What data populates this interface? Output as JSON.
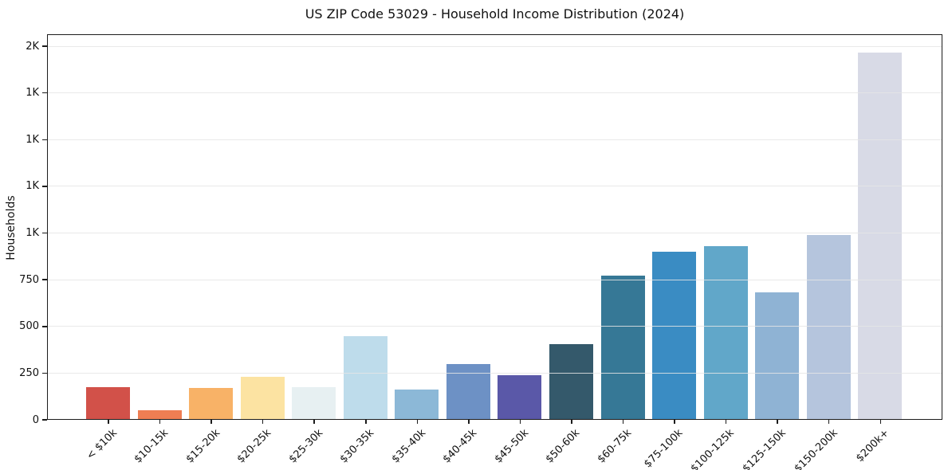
{
  "chart_data": {
    "type": "bar",
    "title": "US ZIP Code 53029 - Household Income Distribution (2024)",
    "xlabel": "",
    "ylabel": "Households",
    "categories": [
      "< $10k",
      "$10-15k",
      "$15-20k",
      "$20-25k",
      "$25-30k",
      "$30-35k",
      "$35-40k",
      "$40-45k",
      "$45-50k",
      "$50-60k",
      "$60-75k",
      "$75-100k",
      "$100-125k",
      "$125-150k",
      "$150-200k",
      "$200k+"
    ],
    "values": [
      172,
      47,
      167,
      226,
      169,
      445,
      158,
      293,
      236,
      400,
      767,
      897,
      926,
      676,
      987,
      1960
    ],
    "bar_colors": [
      "#d25149",
      "#ef7e53",
      "#f8b267",
      "#fce3a2",
      "#e7f0f2",
      "#bedceb",
      "#8cb8d7",
      "#6d91c5",
      "#5a58a8",
      "#34596b",
      "#367896",
      "#3a8cc3",
      "#61a7c9",
      "#8fb3d4",
      "#b5c5dd",
      "#d8dae6"
    ],
    "ylim": [
      0,
      2064
    ],
    "yticks": [
      {
        "value": 0,
        "label": "0"
      },
      {
        "value": 250,
        "label": "250"
      },
      {
        "value": 500,
        "label": "500"
      },
      {
        "value": 750,
        "label": "750"
      },
      {
        "value": 1000,
        "label": "1K"
      },
      {
        "value": 1250,
        "label": "1K"
      },
      {
        "value": 1500,
        "label": "1K"
      },
      {
        "value": 1750,
        "label": "1K"
      },
      {
        "value": 2000,
        "label": "2K"
      }
    ],
    "grid": "horizontal",
    "legend": "none",
    "colors": {
      "axis": "#1c1c1c",
      "grid": "#e7e7e7",
      "text": "#111111",
      "background": "#ffffff"
    }
  }
}
